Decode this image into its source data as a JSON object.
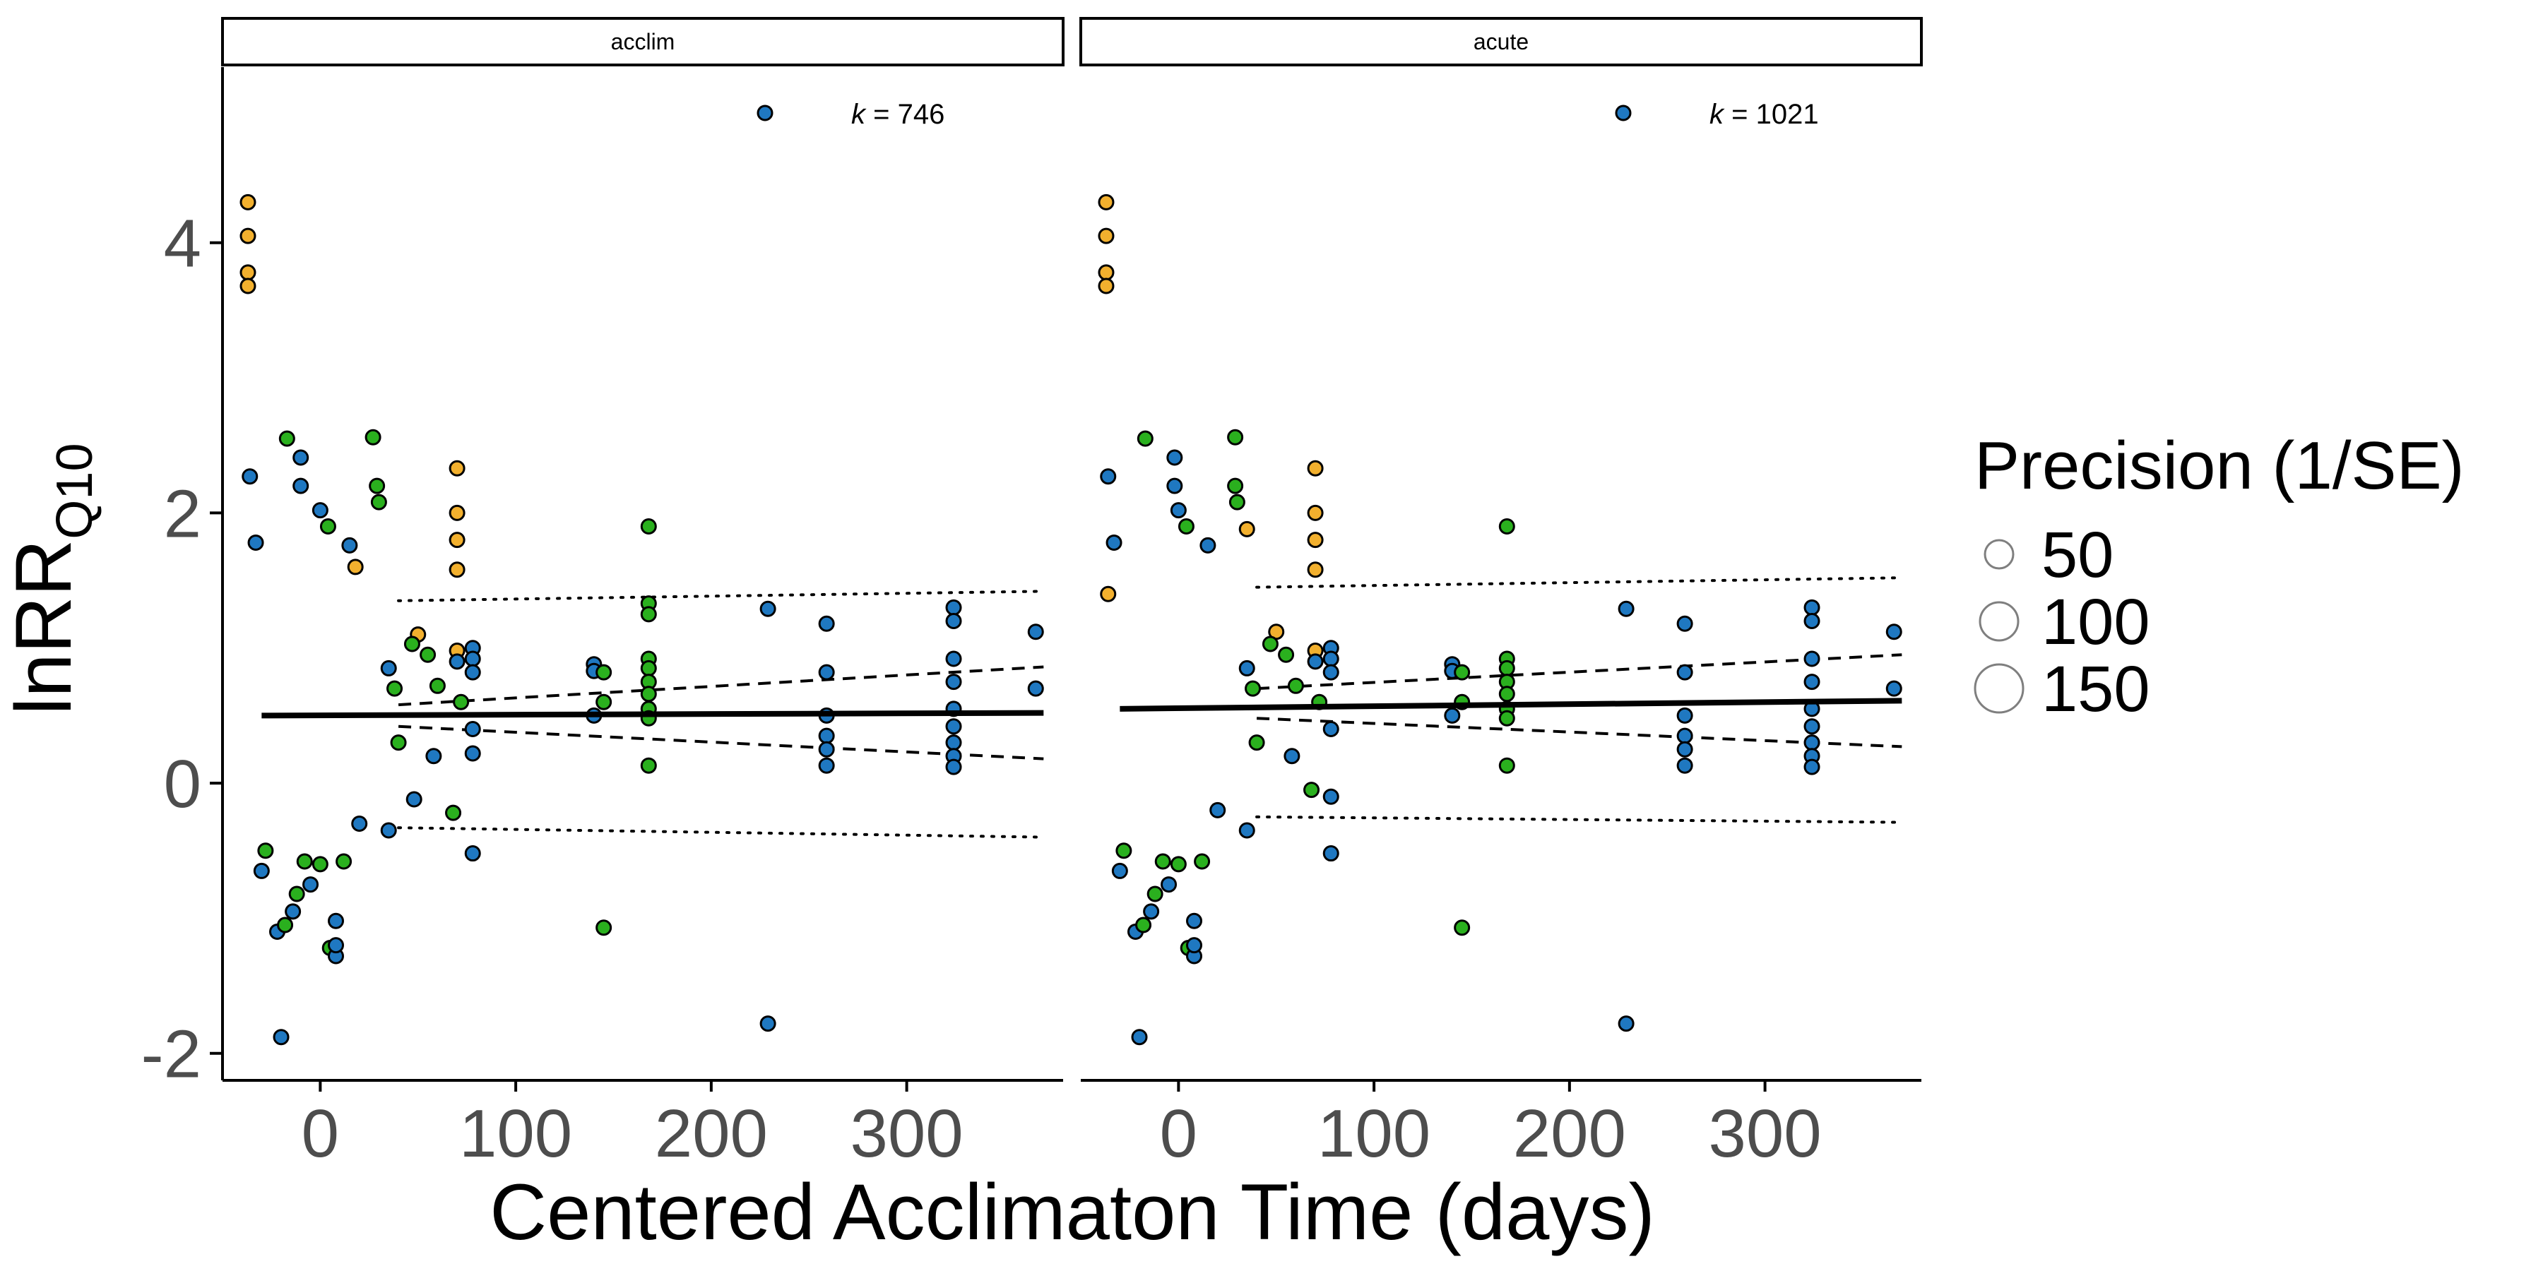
{
  "chart_data": {
    "type": "scatter",
    "xlabel": "Centered Acclimaton Time (days)",
    "ylabel": "lnRR",
    "ylabel_sub": "Q10",
    "xlim": [
      -50,
      380
    ],
    "ylim": [
      -2.2,
      5.3
    ],
    "x_ticks": [
      {
        "value": 0,
        "label": "0"
      },
      {
        "value": 100,
        "label": "100"
      },
      {
        "value": 200,
        "label": "200"
      },
      {
        "value": 300,
        "label": "300"
      }
    ],
    "y_ticks": [
      {
        "value": -2,
        "label": "-2"
      },
      {
        "value": 0,
        "label": "0"
      },
      {
        "value": 2,
        "label": "2"
      },
      {
        "value": 4,
        "label": "4"
      }
    ],
    "grid": false,
    "colors": {
      "yellow": "#F2B02E",
      "blue": "#1F78C1",
      "green": "#2AB01E",
      "border": "#000000"
    },
    "legend": {
      "title": "Precision (1/SE)",
      "placement": "right",
      "items": [
        {
          "label": "50",
          "value": 50
        },
        {
          "label": "100",
          "value": 100
        },
        {
          "label": "150",
          "value": 150
        }
      ]
    },
    "panels": [
      {
        "strip": "acclim",
        "k_prefix": "k",
        "k_value": "= 746",
        "fit": {
          "x0": -30,
          "y0": 0.5,
          "x1": 370,
          "y1": 0.52
        },
        "ci_upper": {
          "x0": 40,
          "y0": 0.58,
          "x1": 370,
          "y1": 0.86
        },
        "ci_lower": {
          "x0": 40,
          "y0": 0.42,
          "x1": 370,
          "y1": 0.18
        },
        "pi_upper": {
          "x0": 40,
          "y0": 1.35,
          "x1": 370,
          "y1": 1.42
        },
        "pi_lower": {
          "x0": 40,
          "y0": -0.33,
          "x1": 370,
          "y1": -0.4
        },
        "points": [
          {
            "x": -37,
            "y": 4.3,
            "c": "yellow"
          },
          {
            "x": -37,
            "y": 4.05,
            "c": "yellow"
          },
          {
            "x": -37,
            "y": 3.78,
            "c": "yellow"
          },
          {
            "x": -37,
            "y": 3.68,
            "c": "yellow"
          },
          {
            "x": -36,
            "y": 2.27,
            "c": "blue"
          },
          {
            "x": -33,
            "y": 1.78,
            "c": "blue"
          },
          {
            "x": -10,
            "y": 2.41,
            "c": "blue"
          },
          {
            "x": -10,
            "y": 2.2,
            "c": "blue"
          },
          {
            "x": -17,
            "y": 2.55,
            "c": "green"
          },
          {
            "x": 27,
            "y": 2.56,
            "c": "green"
          },
          {
            "x": 29,
            "y": 2.2,
            "c": "green"
          },
          {
            "x": 30,
            "y": 2.08,
            "c": "green"
          },
          {
            "x": 0,
            "y": 2.02,
            "c": "blue"
          },
          {
            "x": 4,
            "y": 1.9,
            "c": "green"
          },
          {
            "x": 15,
            "y": 1.76,
            "c": "blue"
          },
          {
            "x": 18,
            "y": 1.6,
            "c": "yellow"
          },
          {
            "x": 70,
            "y": 2.33,
            "c": "yellow"
          },
          {
            "x": 70,
            "y": 2.0,
            "c": "yellow"
          },
          {
            "x": 70,
            "y": 1.8,
            "c": "yellow"
          },
          {
            "x": 70,
            "y": 1.58,
            "c": "yellow"
          },
          {
            "x": 70,
            "y": 0.98,
            "c": "yellow"
          },
          {
            "x": 70,
            "y": 0.9,
            "c": "blue"
          },
          {
            "x": 72,
            "y": 0.6,
            "c": "green"
          },
          {
            "x": 68,
            "y": -0.22,
            "c": "green"
          },
          {
            "x": 78,
            "y": 1.0,
            "c": "blue"
          },
          {
            "x": 78,
            "y": 0.92,
            "c": "blue"
          },
          {
            "x": 78,
            "y": 0.82,
            "c": "blue"
          },
          {
            "x": 78,
            "y": 0.4,
            "c": "blue"
          },
          {
            "x": 78,
            "y": 0.22,
            "c": "blue"
          },
          {
            "x": 78,
            "y": -0.52,
            "c": "blue"
          },
          {
            "x": 50,
            "y": 1.1,
            "c": "yellow"
          },
          {
            "x": 47,
            "y": 1.03,
            "c": "green"
          },
          {
            "x": 55,
            "y": 0.95,
            "c": "green"
          },
          {
            "x": 60,
            "y": 0.72,
            "c": "green"
          },
          {
            "x": 35,
            "y": 0.85,
            "c": "blue"
          },
          {
            "x": 38,
            "y": 0.7,
            "c": "green"
          },
          {
            "x": 40,
            "y": 0.3,
            "c": "green"
          },
          {
            "x": 35,
            "y": -0.35,
            "c": "blue"
          },
          {
            "x": 48,
            "y": -0.12,
            "c": "blue"
          },
          {
            "x": 58,
            "y": 0.2,
            "c": "blue"
          },
          {
            "x": 140,
            "y": 0.88,
            "c": "blue"
          },
          {
            "x": 140,
            "y": 0.83,
            "c": "blue"
          },
          {
            "x": 140,
            "y": 0.5,
            "c": "blue"
          },
          {
            "x": 145,
            "y": 0.82,
            "c": "green"
          },
          {
            "x": 145,
            "y": 0.6,
            "c": "green"
          },
          {
            "x": 145,
            "y": -1.07,
            "c": "green"
          },
          {
            "x": 168,
            "y": 1.9,
            "c": "green"
          },
          {
            "x": 168,
            "y": 1.33,
            "c": "green"
          },
          {
            "x": 168,
            "y": 1.25,
            "c": "green"
          },
          {
            "x": 168,
            "y": 0.92,
            "c": "green"
          },
          {
            "x": 168,
            "y": 0.85,
            "c": "green"
          },
          {
            "x": 168,
            "y": 0.75,
            "c": "green"
          },
          {
            "x": 168,
            "y": 0.66,
            "c": "green"
          },
          {
            "x": 168,
            "y": 0.55,
            "c": "green"
          },
          {
            "x": 168,
            "y": 0.48,
            "c": "green"
          },
          {
            "x": 168,
            "y": 0.13,
            "c": "green"
          },
          {
            "x": 229,
            "y": 1.29,
            "c": "blue"
          },
          {
            "x": 229,
            "y": -1.78,
            "c": "blue"
          },
          {
            "x": 259,
            "y": 1.18,
            "c": "blue"
          },
          {
            "x": 259,
            "y": 0.82,
            "c": "blue"
          },
          {
            "x": 259,
            "y": 0.5,
            "c": "blue"
          },
          {
            "x": 259,
            "y": 0.35,
            "c": "blue"
          },
          {
            "x": 259,
            "y": 0.25,
            "c": "blue"
          },
          {
            "x": 259,
            "y": 0.13,
            "c": "blue"
          },
          {
            "x": 324,
            "y": 1.3,
            "c": "blue"
          },
          {
            "x": 324,
            "y": 1.2,
            "c": "blue"
          },
          {
            "x": 324,
            "y": 0.92,
            "c": "blue"
          },
          {
            "x": 324,
            "y": 0.75,
            "c": "blue"
          },
          {
            "x": 324,
            "y": 0.55,
            "c": "blue"
          },
          {
            "x": 324,
            "y": 0.42,
            "c": "blue"
          },
          {
            "x": 324,
            "y": 0.3,
            "c": "blue"
          },
          {
            "x": 324,
            "y": 0.2,
            "c": "blue"
          },
          {
            "x": 324,
            "y": 0.12,
            "c": "blue"
          },
          {
            "x": 366,
            "y": 1.12,
            "c": "blue"
          },
          {
            "x": 366,
            "y": 0.7,
            "c": "blue"
          },
          {
            "x": -20,
            "y": -1.88,
            "c": "blue"
          },
          {
            "x": -22,
            "y": -1.1,
            "c": "blue"
          },
          {
            "x": -18,
            "y": -1.05,
            "c": "green"
          },
          {
            "x": -14,
            "y": -0.95,
            "c": "blue"
          },
          {
            "x": -12,
            "y": -0.82,
            "c": "green"
          },
          {
            "x": 5,
            "y": -1.22,
            "c": "green"
          },
          {
            "x": 8,
            "y": -1.28,
            "c": "blue"
          },
          {
            "x": 8,
            "y": -1.2,
            "c": "blue"
          },
          {
            "x": 8,
            "y": -1.02,
            "c": "blue"
          },
          {
            "x": -5,
            "y": -0.75,
            "c": "blue"
          },
          {
            "x": -30,
            "y": -0.65,
            "c": "blue"
          },
          {
            "x": -28,
            "y": -0.5,
            "c": "green"
          },
          {
            "x": 0,
            "y": -0.6,
            "c": "green"
          },
          {
            "x": 12,
            "y": -0.58,
            "c": "green"
          },
          {
            "x": 20,
            "y": -0.3,
            "c": "blue"
          },
          {
            "x": -8,
            "y": -0.58,
            "c": "green"
          }
        ]
      },
      {
        "strip": "acute",
        "k_prefix": "k",
        "k_value": "= 1021",
        "fit": {
          "x0": -30,
          "y0": 0.55,
          "x1": 370,
          "y1": 0.61
        },
        "ci_upper": {
          "x0": 40,
          "y0": 0.7,
          "x1": 370,
          "y1": 0.95
        },
        "ci_lower": {
          "x0": 40,
          "y0": 0.48,
          "x1": 370,
          "y1": 0.27
        },
        "pi_upper": {
          "x0": 40,
          "y0": 1.45,
          "x1": 370,
          "y1": 1.52
        },
        "pi_lower": {
          "x0": 40,
          "y0": -0.25,
          "x1": 370,
          "y1": -0.29
        },
        "points": [
          {
            "x": -37,
            "y": 4.3,
            "c": "yellow"
          },
          {
            "x": -37,
            "y": 4.05,
            "c": "yellow"
          },
          {
            "x": -37,
            "y": 3.78,
            "c": "yellow"
          },
          {
            "x": -37,
            "y": 3.68,
            "c": "yellow"
          },
          {
            "x": -36,
            "y": 2.27,
            "c": "blue"
          },
          {
            "x": -33,
            "y": 1.78,
            "c": "blue"
          },
          {
            "x": -2,
            "y": 2.41,
            "c": "blue"
          },
          {
            "x": -2,
            "y": 2.2,
            "c": "blue"
          },
          {
            "x": -17,
            "y": 2.55,
            "c": "green"
          },
          {
            "x": 29,
            "y": 2.56,
            "c": "green"
          },
          {
            "x": 29,
            "y": 2.2,
            "c": "green"
          },
          {
            "x": 30,
            "y": 2.08,
            "c": "green"
          },
          {
            "x": 0,
            "y": 2.02,
            "c": "blue"
          },
          {
            "x": 4,
            "y": 1.9,
            "c": "green"
          },
          {
            "x": 15,
            "y": 1.76,
            "c": "blue"
          },
          {
            "x": 35,
            "y": 1.88,
            "c": "yellow"
          },
          {
            "x": 70,
            "y": 2.33,
            "c": "yellow"
          },
          {
            "x": 70,
            "y": 2.0,
            "c": "yellow"
          },
          {
            "x": 70,
            "y": 1.8,
            "c": "yellow"
          },
          {
            "x": 70,
            "y": 1.58,
            "c": "yellow"
          },
          {
            "x": 70,
            "y": 0.98,
            "c": "yellow"
          },
          {
            "x": 70,
            "y": 0.9,
            "c": "blue"
          },
          {
            "x": 72,
            "y": 0.6,
            "c": "green"
          },
          {
            "x": 68,
            "y": -0.05,
            "c": "green"
          },
          {
            "x": 78,
            "y": 1.0,
            "c": "blue"
          },
          {
            "x": 78,
            "y": 0.92,
            "c": "blue"
          },
          {
            "x": 78,
            "y": 0.82,
            "c": "blue"
          },
          {
            "x": 78,
            "y": 0.4,
            "c": "blue"
          },
          {
            "x": 78,
            "y": -0.1,
            "c": "blue"
          },
          {
            "x": 78,
            "y": -0.52,
            "c": "blue"
          },
          {
            "x": 50,
            "y": 1.12,
            "c": "yellow"
          },
          {
            "x": 47,
            "y": 1.03,
            "c": "green"
          },
          {
            "x": 55,
            "y": 0.95,
            "c": "green"
          },
          {
            "x": 60,
            "y": 0.72,
            "c": "green"
          },
          {
            "x": 35,
            "y": 0.85,
            "c": "blue"
          },
          {
            "x": 38,
            "y": 0.7,
            "c": "green"
          },
          {
            "x": 40,
            "y": 0.3,
            "c": "green"
          },
          {
            "x": 35,
            "y": -0.35,
            "c": "blue"
          },
          {
            "x": 20,
            "y": -0.2,
            "c": "blue"
          },
          {
            "x": 58,
            "y": 0.2,
            "c": "blue"
          },
          {
            "x": 140,
            "y": 0.88,
            "c": "blue"
          },
          {
            "x": 140,
            "y": 0.83,
            "c": "blue"
          },
          {
            "x": 140,
            "y": 0.5,
            "c": "blue"
          },
          {
            "x": 145,
            "y": 0.82,
            "c": "green"
          },
          {
            "x": 145,
            "y": 0.6,
            "c": "green"
          },
          {
            "x": 145,
            "y": -1.07,
            "c": "green"
          },
          {
            "x": 168,
            "y": 1.9,
            "c": "green"
          },
          {
            "x": 168,
            "y": 0.92,
            "c": "green"
          },
          {
            "x": 168,
            "y": 0.85,
            "c": "green"
          },
          {
            "x": 168,
            "y": 0.75,
            "c": "green"
          },
          {
            "x": 168,
            "y": 0.66,
            "c": "green"
          },
          {
            "x": 168,
            "y": 0.55,
            "c": "green"
          },
          {
            "x": 168,
            "y": 0.48,
            "c": "green"
          },
          {
            "x": 168,
            "y": 0.13,
            "c": "green"
          },
          {
            "x": 229,
            "y": 1.29,
            "c": "blue"
          },
          {
            "x": 229,
            "y": -1.78,
            "c": "blue"
          },
          {
            "x": 259,
            "y": 1.18,
            "c": "blue"
          },
          {
            "x": 259,
            "y": 0.82,
            "c": "blue"
          },
          {
            "x": 259,
            "y": 0.5,
            "c": "blue"
          },
          {
            "x": 259,
            "y": 0.35,
            "c": "blue"
          },
          {
            "x": 259,
            "y": 0.25,
            "c": "blue"
          },
          {
            "x": 259,
            "y": 0.13,
            "c": "blue"
          },
          {
            "x": 324,
            "y": 1.3,
            "c": "blue"
          },
          {
            "x": 324,
            "y": 1.2,
            "c": "blue"
          },
          {
            "x": 324,
            "y": 0.92,
            "c": "blue"
          },
          {
            "x": 324,
            "y": 0.75,
            "c": "blue"
          },
          {
            "x": 324,
            "y": 0.55,
            "c": "blue"
          },
          {
            "x": 324,
            "y": 0.42,
            "c": "blue"
          },
          {
            "x": 324,
            "y": 0.3,
            "c": "blue"
          },
          {
            "x": 324,
            "y": 0.2,
            "c": "blue"
          },
          {
            "x": 324,
            "y": 0.12,
            "c": "blue"
          },
          {
            "x": 366,
            "y": 1.12,
            "c": "blue"
          },
          {
            "x": 366,
            "y": 0.7,
            "c": "blue"
          },
          {
            "x": -20,
            "y": -1.88,
            "c": "blue"
          },
          {
            "x": -22,
            "y": -1.1,
            "c": "blue"
          },
          {
            "x": -18,
            "y": -1.05,
            "c": "green"
          },
          {
            "x": -14,
            "y": -0.95,
            "c": "blue"
          },
          {
            "x": -12,
            "y": -0.82,
            "c": "green"
          },
          {
            "x": 5,
            "y": -1.22,
            "c": "green"
          },
          {
            "x": 8,
            "y": -1.28,
            "c": "blue"
          },
          {
            "x": 8,
            "y": -1.2,
            "c": "blue"
          },
          {
            "x": 8,
            "y": -1.02,
            "c": "blue"
          },
          {
            "x": -5,
            "y": -0.75,
            "c": "blue"
          },
          {
            "x": -30,
            "y": -0.65,
            "c": "blue"
          },
          {
            "x": -28,
            "y": -0.5,
            "c": "green"
          },
          {
            "x": 0,
            "y": -0.6,
            "c": "green"
          },
          {
            "x": 12,
            "y": -0.58,
            "c": "green"
          },
          {
            "x": -8,
            "y": -0.58,
            "c": "green"
          },
          {
            "x": -36,
            "y": 1.4,
            "c": "yellow"
          }
        ]
      }
    ]
  }
}
